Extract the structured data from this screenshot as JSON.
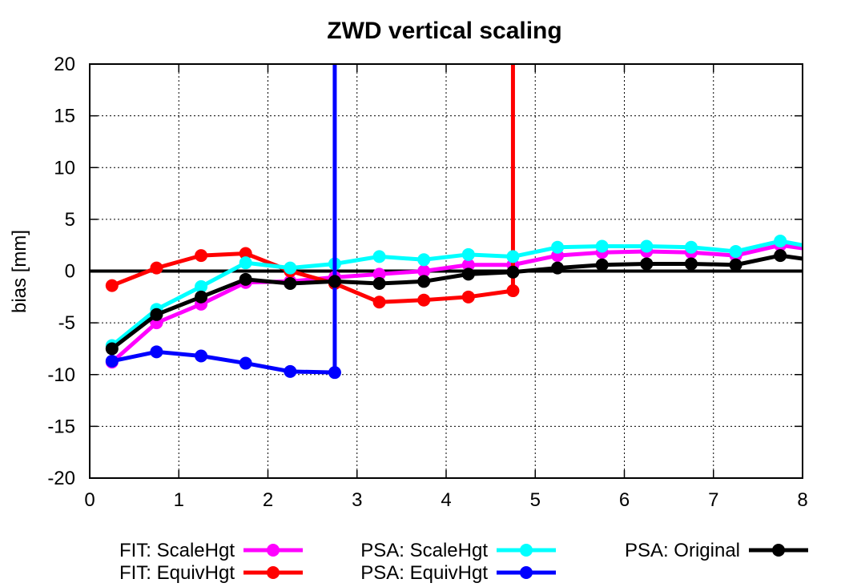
{
  "chart_data": {
    "type": "line",
    "title": "ZWD vertical scaling",
    "xlabel": "",
    "ylabel": "bias [mm]",
    "xlim": [
      0,
      8
    ],
    "ylim": [
      -20,
      20
    ],
    "xticks": [
      0,
      1,
      2,
      3,
      4,
      5,
      6,
      7,
      8
    ],
    "yticks": [
      -20,
      -15,
      -10,
      -5,
      0,
      5,
      10,
      15,
      20
    ],
    "xtick_labels": [
      "0",
      "1",
      "2",
      "3",
      "4",
      "5",
      "6",
      "7",
      "8"
    ],
    "ytick_labels": [
      "-20",
      "-15",
      "-10",
      "-5",
      "0",
      "5",
      "10",
      "15",
      "20"
    ],
    "grid": true,
    "zero_line": true,
    "legend_position": "bottom",
    "series": [
      {
        "name": "FIT: ScaleHgt",
        "color": "#ff00ff",
        "points": [
          [
            0.25,
            -8.8
          ],
          [
            0.75,
            -5.0
          ],
          [
            1.25,
            -3.2
          ],
          [
            1.75,
            -1.1
          ],
          [
            2.25,
            -1.0
          ],
          [
            2.75,
            -0.6
          ],
          [
            3.25,
            -0.3
          ],
          [
            3.75,
            0.0
          ],
          [
            4.25,
            0.6
          ],
          [
            4.75,
            0.6
          ],
          [
            5.25,
            1.5
          ],
          [
            5.75,
            1.8
          ],
          [
            6.25,
            1.9
          ],
          [
            6.75,
            1.8
          ],
          [
            7.25,
            1.5
          ],
          [
            7.75,
            2.5
          ],
          [
            8.0,
            2.2
          ]
        ]
      },
      {
        "name": "FIT: EquivHgt",
        "color": "#ff0000",
        "points": [
          [
            0.25,
            -1.4
          ],
          [
            0.75,
            0.3
          ],
          [
            1.25,
            1.5
          ],
          [
            1.75,
            1.7
          ],
          [
            2.25,
            0.0
          ],
          [
            2.75,
            -1.2
          ],
          [
            3.25,
            -3.0
          ],
          [
            3.75,
            -2.8
          ],
          [
            4.25,
            -2.5
          ],
          [
            4.75,
            -1.9
          ]
        ],
        "spike": {
          "x": 4.75,
          "from": -1.9,
          "to": 20
        }
      },
      {
        "name": "PSA: ScaleHgt",
        "color": "#00ffff",
        "points": [
          [
            0.25,
            -7.2
          ],
          [
            0.75,
            -3.7
          ],
          [
            1.25,
            -1.5
          ],
          [
            1.75,
            0.8
          ],
          [
            2.25,
            0.3
          ],
          [
            2.75,
            0.7
          ],
          [
            3.25,
            1.4
          ],
          [
            3.75,
            1.1
          ],
          [
            4.25,
            1.6
          ],
          [
            4.75,
            1.4
          ],
          [
            5.25,
            2.3
          ],
          [
            5.75,
            2.4
          ],
          [
            6.25,
            2.4
          ],
          [
            6.75,
            2.3
          ],
          [
            7.25,
            1.9
          ],
          [
            7.75,
            2.9
          ],
          [
            8.0,
            2.5
          ]
        ]
      },
      {
        "name": "PSA: EquivHgt",
        "color": "#0000ff",
        "points": [
          [
            0.25,
            -8.7
          ],
          [
            0.75,
            -7.8
          ],
          [
            1.25,
            -8.2
          ],
          [
            1.75,
            -8.9
          ],
          [
            2.25,
            -9.7
          ],
          [
            2.75,
            -9.8
          ]
        ],
        "spike": {
          "x": 2.75,
          "from": -9.8,
          "to": 20
        }
      },
      {
        "name": "PSA: Original",
        "color": "#000000",
        "points": [
          [
            0.25,
            -7.5
          ],
          [
            0.75,
            -4.2
          ],
          [
            1.25,
            -2.5
          ],
          [
            1.75,
            -0.8
          ],
          [
            2.25,
            -1.2
          ],
          [
            2.75,
            -1.0
          ],
          [
            3.25,
            -1.2
          ],
          [
            3.75,
            -1.0
          ],
          [
            4.25,
            -0.3
          ],
          [
            4.75,
            -0.1
          ],
          [
            5.25,
            0.3
          ],
          [
            5.75,
            0.6
          ],
          [
            6.25,
            0.7
          ],
          [
            6.75,
            0.7
          ],
          [
            7.25,
            0.6
          ],
          [
            7.75,
            1.5
          ],
          [
            8.0,
            1.2
          ]
        ]
      }
    ]
  }
}
